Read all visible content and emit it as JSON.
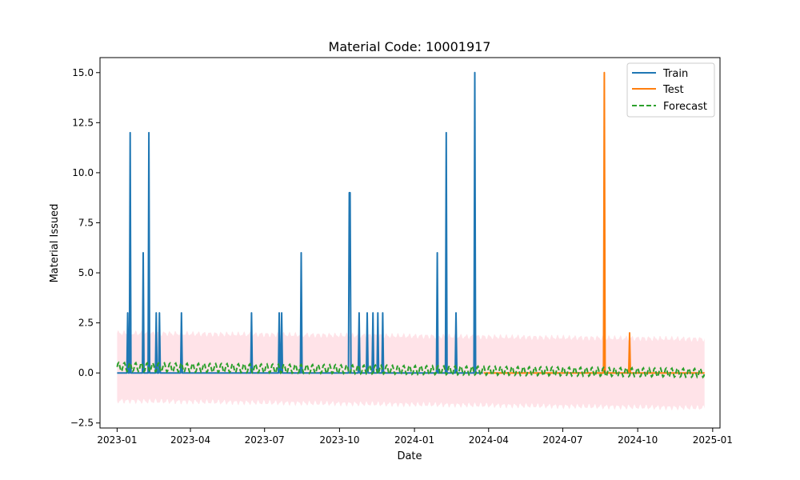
{
  "chart_data": {
    "type": "line",
    "title": "Material Code: 10001917",
    "xlabel": "Date",
    "ylabel": "Material Issued",
    "xlim": [
      "2022-12-11",
      "2025-01-10"
    ],
    "ylim": [
      -2.75,
      15.75
    ],
    "x_ticks": [
      "2023-01",
      "2023-04",
      "2023-07",
      "2023-10",
      "2024-01",
      "2024-04",
      "2024-07",
      "2024-10",
      "2025-01"
    ],
    "y_ticks": [
      "−2.5",
      "0.0",
      "2.5",
      "5.0",
      "7.5",
      "10.0",
      "12.5",
      "15.0"
    ],
    "legend_position": "top-right",
    "grid": false,
    "series": [
      {
        "name": "Train",
        "color": "#1f77b4",
        "style": "solid",
        "points": [
          [
            "2023-01-01",
            0
          ],
          [
            "2023-01-13",
            0
          ],
          [
            "2023-01-14",
            3
          ],
          [
            "2023-01-15",
            0
          ],
          [
            "2023-01-16",
            0
          ],
          [
            "2023-01-17",
            12
          ],
          [
            "2023-01-18",
            0
          ],
          [
            "2023-02-01",
            0
          ],
          [
            "2023-02-02",
            6
          ],
          [
            "2023-02-03",
            0
          ],
          [
            "2023-02-08",
            0
          ],
          [
            "2023-02-09",
            12
          ],
          [
            "2023-02-10",
            0
          ],
          [
            "2023-02-17",
            0
          ],
          [
            "2023-02-18",
            3
          ],
          [
            "2023-02-19",
            0
          ],
          [
            "2023-02-21",
            0
          ],
          [
            "2023-02-22",
            3
          ],
          [
            "2023-02-23",
            0
          ],
          [
            "2023-03-20",
            0
          ],
          [
            "2023-03-21",
            3
          ],
          [
            "2023-03-22",
            0
          ],
          [
            "2023-06-14",
            0
          ],
          [
            "2023-06-15",
            3
          ],
          [
            "2023-06-16",
            0
          ],
          [
            "2023-07-18",
            0
          ],
          [
            "2023-07-19",
            3
          ],
          [
            "2023-07-20",
            0
          ],
          [
            "2023-07-21",
            0
          ],
          [
            "2023-07-22",
            3
          ],
          [
            "2023-07-23",
            0
          ],
          [
            "2023-08-14",
            0
          ],
          [
            "2023-08-15",
            6
          ],
          [
            "2023-08-16",
            0
          ],
          [
            "2023-10-12",
            0
          ],
          [
            "2023-10-13",
            9
          ],
          [
            "2023-10-14",
            9
          ],
          [
            "2023-10-15",
            0
          ],
          [
            "2023-10-24",
            0
          ],
          [
            "2023-10-25",
            3
          ],
          [
            "2023-10-26",
            0
          ],
          [
            "2023-11-03",
            0
          ],
          [
            "2023-11-04",
            3
          ],
          [
            "2023-11-05",
            0
          ],
          [
            "2023-11-10",
            0
          ],
          [
            "2023-11-11",
            3
          ],
          [
            "2023-11-12",
            0
          ],
          [
            "2023-11-16",
            0
          ],
          [
            "2023-11-17",
            3
          ],
          [
            "2023-11-18",
            0
          ],
          [
            "2023-11-22",
            0
          ],
          [
            "2023-11-23",
            3
          ],
          [
            "2023-11-24",
            0
          ],
          [
            "2024-01-28",
            0
          ],
          [
            "2024-01-29",
            6
          ],
          [
            "2024-01-30",
            0
          ],
          [
            "2024-02-08",
            0
          ],
          [
            "2024-02-09",
            12
          ],
          [
            "2024-02-10",
            0
          ],
          [
            "2024-02-20",
            0
          ],
          [
            "2024-02-21",
            3
          ],
          [
            "2024-02-22",
            0
          ],
          [
            "2024-03-14",
            0
          ],
          [
            "2024-03-15",
            15
          ],
          [
            "2024-03-16",
            0
          ],
          [
            "2024-03-25",
            0
          ]
        ]
      },
      {
        "name": "Test",
        "color": "#ff7f0e",
        "style": "solid",
        "points": [
          [
            "2024-03-26",
            0
          ],
          [
            "2024-08-20",
            0
          ],
          [
            "2024-08-21",
            15
          ],
          [
            "2024-08-22",
            0
          ],
          [
            "2024-09-20",
            0
          ],
          [
            "2024-09-21",
            2
          ],
          [
            "2024-09-22",
            0
          ],
          [
            "2024-12-22",
            0
          ]
        ]
      },
      {
        "name": "Forecast",
        "color": "#2ca02c",
        "style": "dashed",
        "start": "2023-01-01",
        "end": "2024-12-22",
        "base_start": 0.3,
        "base_end": 0.0,
        "amplitude": 0.22,
        "period_days": 7
      }
    ],
    "confidence_band": {
      "color": "#ffc0cb",
      "opacity": 0.45,
      "lower_start": -1.4,
      "lower_end": -1.75,
      "upper_start": 2.0,
      "upper_end": 1.7
    }
  }
}
